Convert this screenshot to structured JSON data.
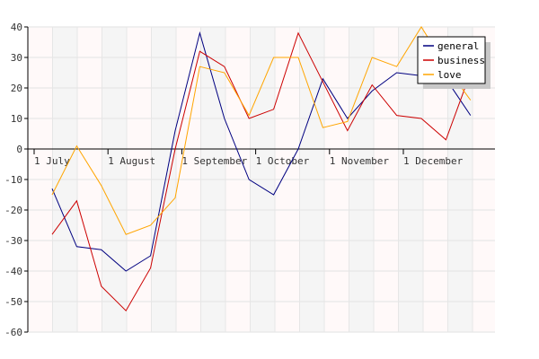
{
  "chart_data": {
    "type": "line",
    "title": "",
    "xlabel": "",
    "ylabel": "",
    "ylim": [
      -60,
      40
    ],
    "y_ticks": [
      40,
      30,
      20,
      10,
      0,
      -10,
      -20,
      -30,
      -40,
      -50,
      -60
    ],
    "x_tick_labels": [
      {
        "label": "1 July",
        "index": 0
      },
      {
        "label": "1 August",
        "index": 3
      },
      {
        "label": "1 September",
        "index": 6
      },
      {
        "label": "1 October",
        "index": 9
      },
      {
        "label": "1 November",
        "index": 12
      },
      {
        "label": "1 December",
        "index": 15
      }
    ],
    "grid": true,
    "legend_position": "top-right",
    "point_count": 18,
    "series": [
      {
        "name": "general",
        "color": "#000080",
        "values": [
          -13,
          -32,
          -33,
          -40,
          -35,
          6,
          38,
          10,
          -10,
          -15,
          0,
          23,
          10,
          19,
          25,
          24,
          23,
          11
        ]
      },
      {
        "name": "business",
        "color": "#cc0000",
        "values": [
          -28,
          -17,
          -45,
          -53,
          -39,
          0,
          32,
          27,
          10,
          13,
          38,
          22,
          6,
          21,
          11,
          10,
          3,
          25
        ]
      },
      {
        "name": "love",
        "color": "#ffa500",
        "values": [
          -15,
          1,
          -12,
          -28,
          -25,
          -16,
          27,
          25,
          11,
          30,
          30,
          7,
          9,
          30,
          27,
          40,
          27,
          16
        ]
      }
    ]
  }
}
